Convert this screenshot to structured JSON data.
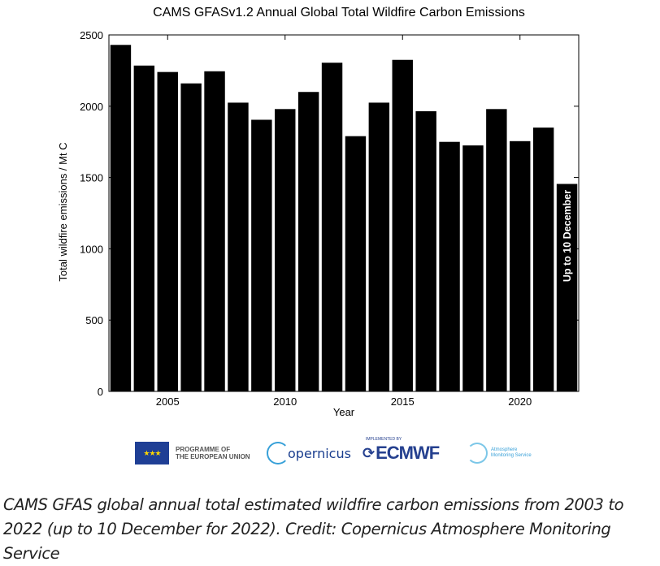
{
  "chart_data": {
    "type": "bar",
    "title": "CAMS GFASv1.2 Annual Global Total Wildfire Carbon Emissions",
    "xlabel": "Year",
    "ylabel": "Total wildfire emissions / Mt C",
    "categories": [
      2003,
      2004,
      2005,
      2006,
      2007,
      2008,
      2009,
      2010,
      2011,
      2012,
      2013,
      2014,
      2015,
      2016,
      2017,
      2018,
      2019,
      2020,
      2021,
      2022
    ],
    "values": [
      2430,
      2285,
      2240,
      2160,
      2245,
      2025,
      1905,
      1980,
      2100,
      2305,
      1790,
      2025,
      2325,
      1965,
      1750,
      1725,
      1980,
      1755,
      1850,
      1455
    ],
    "xlim": [
      2002.5,
      2022.5
    ],
    "ylim": [
      0,
      2500
    ],
    "yticks": [
      0,
      500,
      1000,
      1500,
      2000,
      2500
    ],
    "xticks": [
      2005,
      2010,
      2015,
      2020
    ],
    "bar_annotation": {
      "category": 2022,
      "text": "Up to 10 December"
    },
    "bar_color": "#000000"
  },
  "logos": {
    "eu_text_line1": "PROGRAMME OF",
    "eu_text_line2": "THE EUROPEAN UNION",
    "copernicus": "opernicus",
    "ecmwf_sub": "IMPLEMENTED BY",
    "ecmwf": "ECMWF",
    "cams_line1": "Atmosphere",
    "cams_line2": "Monitoring Service"
  },
  "caption": "CAMS GFAS global annual total estimated wildfire carbon emissions from 2003 to 2022 (up to 10 December for 2022). Credit: Copernicus Atmosphere Monitoring Service"
}
